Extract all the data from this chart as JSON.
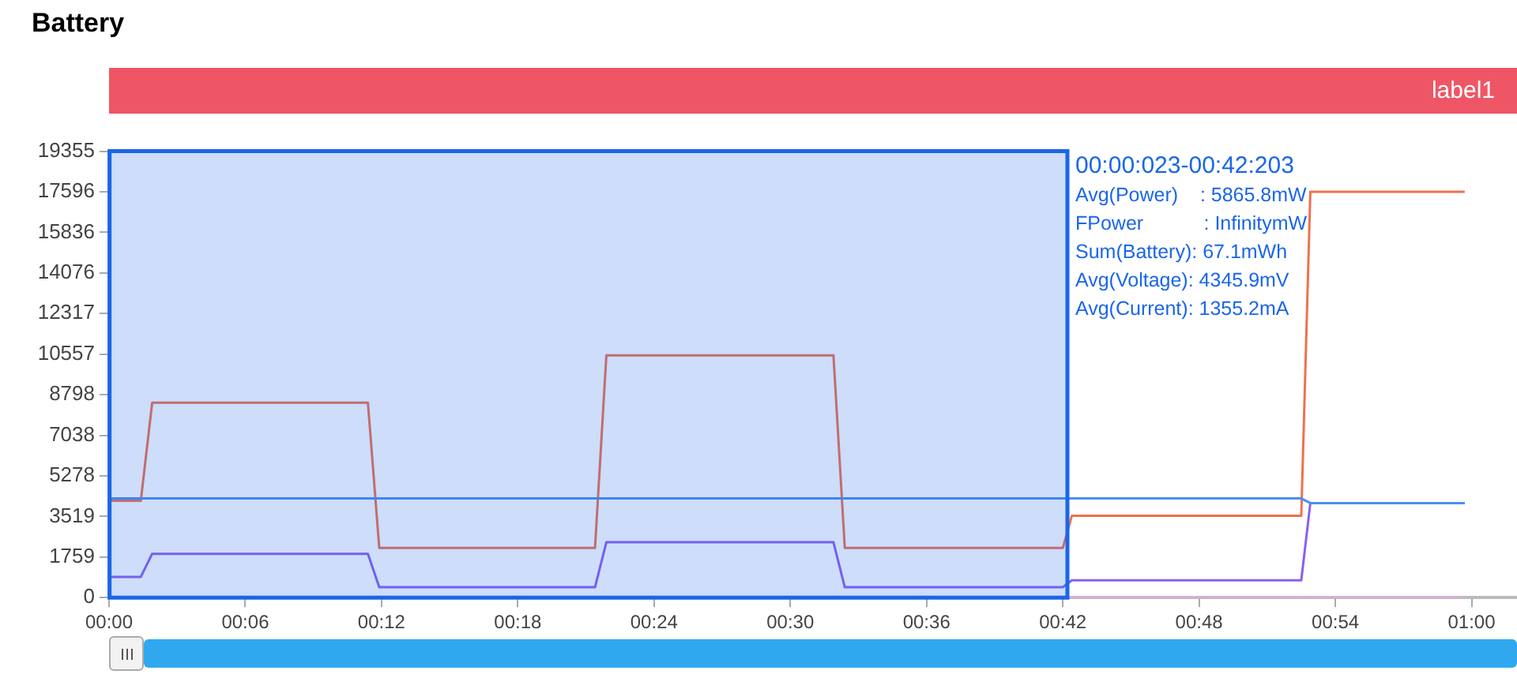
{
  "chart_data": {
    "type": "line",
    "title": "Battery",
    "xlim": [
      0,
      62
    ],
    "xticks": [
      {
        "value": 0,
        "label": "00:00"
      },
      {
        "value": 6,
        "label": "00:06"
      },
      {
        "value": 12,
        "label": "00:12"
      },
      {
        "value": 18,
        "label": "00:18"
      },
      {
        "value": 24,
        "label": "00:24"
      },
      {
        "value": 30,
        "label": "00:30"
      },
      {
        "value": 36,
        "label": "00:36"
      },
      {
        "value": 42,
        "label": "00:42"
      },
      {
        "value": 48,
        "label": "00:48"
      },
      {
        "value": 54,
        "label": "00:54"
      },
      {
        "value": 60,
        "label": "01:00"
      }
    ],
    "ylim": [
      0,
      19355
    ],
    "yticks": [
      0,
      1759,
      3519,
      5278,
      7038,
      8798,
      10557,
      12317,
      14076,
      15836,
      17596,
      19355
    ],
    "grid": false,
    "legend": false,
    "marker": "none",
    "line_style": "solid",
    "series": [
      {
        "color": "#4a90f0",
        "x": [
          0,
          52.5,
          52.9,
          59.7
        ],
        "values": [
          4300,
          4300,
          4100,
          4100
        ]
      },
      {
        "color": "#f07050",
        "x": [
          0,
          1.4,
          1.9,
          11.4,
          11.9,
          21.4,
          21.9,
          31.9,
          32.4,
          42.0,
          42.4,
          52.5,
          52.9,
          59.7
        ],
        "values": [
          4200,
          4200,
          8450,
          8450,
          2150,
          2150,
          10500,
          10500,
          2150,
          2150,
          3550,
          3550,
          17600,
          17600
        ]
      },
      {
        "color": "#8a60f0",
        "x": [
          0,
          1.4,
          1.9,
          11.4,
          11.9,
          21.4,
          21.9,
          31.9,
          32.4,
          42.0,
          42.4,
          52.5,
          52.9,
          59.7
        ],
        "values": [
          900,
          900,
          1900,
          1900,
          450,
          450,
          2400,
          2400,
          450,
          450,
          750,
          750,
          4100,
          4100
        ]
      },
      {
        "color": "#e8a8e0",
        "x": [
          42.2,
          59.7
        ],
        "values": [
          0,
          0
        ]
      }
    ],
    "bands": [
      {
        "axis": "x",
        "from": 0.023,
        "to": 42.203,
        "color": "#1a66e8"
      }
    ],
    "annotations": [
      "label1",
      "00:00:023-00:42:203",
      "Avg(Power)    : 5865.8mW",
      "FPower           : InfinitymW",
      "Sum(Battery): 67.1mWh",
      "Avg(Voltage): 4345.9mV",
      "Avg(Current): 1355.2mA"
    ]
  }
}
